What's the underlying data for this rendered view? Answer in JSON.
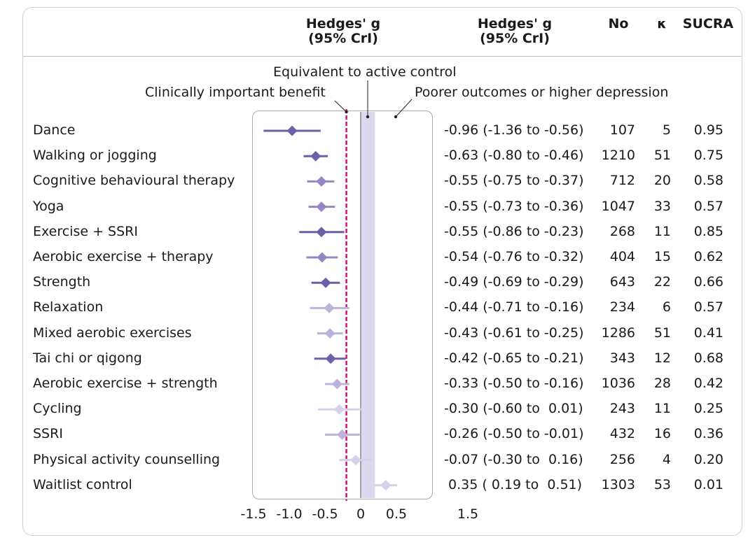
{
  "header": {
    "plot_col": [
      "Hedges' g",
      "(95% CrI)"
    ],
    "est_col": [
      "Hedges' g",
      "(95% CrI)"
    ],
    "n_col": "No",
    "k_col": "κ",
    "sucra_col": "SUCRA"
  },
  "annotations": {
    "equivalent": "Equivalent to active control",
    "benefit": "Clinically important benefit",
    "poorer": "Poorer outcomes or higher depression"
  },
  "colors": {
    "dark": "#6f5fa8",
    "medium": "#9687c4",
    "light": "#bcb3dc",
    "faint": "#d6d0ea",
    "band": "#dcd9ee",
    "mcid_line": "#d6177a"
  },
  "chart_data": {
    "type": "forest",
    "x_axis": {
      "ticks": [
        "-1.5",
        "-1.0",
        "-0.5",
        "0",
        "0.5",
        "1.5"
      ],
      "tick_values": [
        -1.5,
        -1.0,
        -0.5,
        0,
        0.5,
        1.5
      ],
      "xlim": [
        -1.5,
        1.5
      ]
    },
    "reference_lines": {
      "clinically_important_benefit": -0.2,
      "active_control_band": [
        0,
        0.2
      ]
    },
    "rows": [
      {
        "label": "Dance",
        "g": -0.96,
        "lo": -1.36,
        "hi": -0.56,
        "ci_text": "-0.96 (-1.36 to -0.56)",
        "no": "107",
        "k": "5",
        "sucra": "0.95",
        "shade": "dark"
      },
      {
        "label": "Walking or jogging",
        "g": -0.63,
        "lo": -0.8,
        "hi": -0.46,
        "ci_text": "-0.63 (-0.80 to -0.46)",
        "no": "1210",
        "k": "51",
        "sucra": "0.75",
        "shade": "dark"
      },
      {
        "label": "Cognitive behavioural therapy",
        "g": -0.55,
        "lo": -0.75,
        "hi": -0.37,
        "ci_text": "-0.55 (-0.75 to -0.37)",
        "no": "712",
        "k": "20",
        "sucra": "0.58",
        "shade": "medium"
      },
      {
        "label": "Yoga",
        "g": -0.55,
        "lo": -0.73,
        "hi": -0.36,
        "ci_text": "-0.55 (-0.73 to -0.36)",
        "no": "1047",
        "k": "33",
        "sucra": "0.57",
        "shade": "medium"
      },
      {
        "label": "Exercise + SSRI",
        "g": -0.55,
        "lo": -0.86,
        "hi": -0.23,
        "ci_text": "-0.55 (-0.86 to -0.23)",
        "no": "268",
        "k": "11",
        "sucra": "0.85",
        "shade": "dark"
      },
      {
        "label": "Aerobic exercise + therapy",
        "g": -0.54,
        "lo": -0.76,
        "hi": -0.32,
        "ci_text": "-0.54 (-0.76 to -0.32)",
        "no": "404",
        "k": "15",
        "sucra": "0.62",
        "shade": "medium"
      },
      {
        "label": "Strength",
        "g": -0.49,
        "lo": -0.69,
        "hi": -0.29,
        "ci_text": "-0.49 (-0.69 to -0.29)",
        "no": "643",
        "k": "22",
        "sucra": "0.66",
        "shade": "dark"
      },
      {
        "label": "Relaxation",
        "g": -0.44,
        "lo": -0.71,
        "hi": -0.16,
        "ci_text": "-0.44 (-0.71 to -0.16)",
        "no": "234",
        "k": "6",
        "sucra": "0.57",
        "shade": "light"
      },
      {
        "label": "Mixed aerobic exercises",
        "g": -0.43,
        "lo": -0.61,
        "hi": -0.25,
        "ci_text": "-0.43 (-0.61 to -0.25)",
        "no": "1286",
        "k": "51",
        "sucra": "0.41",
        "shade": "light"
      },
      {
        "label": "Tai chi or qigong",
        "g": -0.42,
        "lo": -0.65,
        "hi": -0.21,
        "ci_text": "-0.42 (-0.65 to -0.21)",
        "no": "343",
        "k": "12",
        "sucra": "0.68",
        "shade": "dark"
      },
      {
        "label": "Aerobic exercise + strength",
        "g": -0.33,
        "lo": -0.5,
        "hi": -0.16,
        "ci_text": "-0.33 (-0.50 to -0.16)",
        "no": "1036",
        "k": "28",
        "sucra": "0.42",
        "shade": "light"
      },
      {
        "label": "Cycling",
        "g": -0.3,
        "lo": -0.6,
        "hi": 0.01,
        "ci_text": "-0.30 (-0.60 to  0.01)",
        "no": "243",
        "k": "11",
        "sucra": "0.25",
        "shade": "faint"
      },
      {
        "label": "SSRI",
        "g": -0.26,
        "lo": -0.5,
        "hi": -0.01,
        "ci_text": "-0.26 (-0.50 to -0.01)",
        "no": "432",
        "k": "16",
        "sucra": "0.36",
        "shade": "light"
      },
      {
        "label": "Physical activity counselling",
        "g": -0.07,
        "lo": -0.3,
        "hi": 0.16,
        "ci_text": "-0.07 (-0.30 to  0.16)",
        "no": "256",
        "k": "4",
        "sucra": "0.20",
        "shade": "faint"
      },
      {
        "label": "Waitlist control",
        "g": 0.35,
        "lo": 0.19,
        "hi": 0.51,
        "ci_text": " 0.35 ( 0.19 to  0.51)",
        "no": "1303",
        "k": "53",
        "sucra": "0.01",
        "shade": "faint"
      }
    ]
  }
}
